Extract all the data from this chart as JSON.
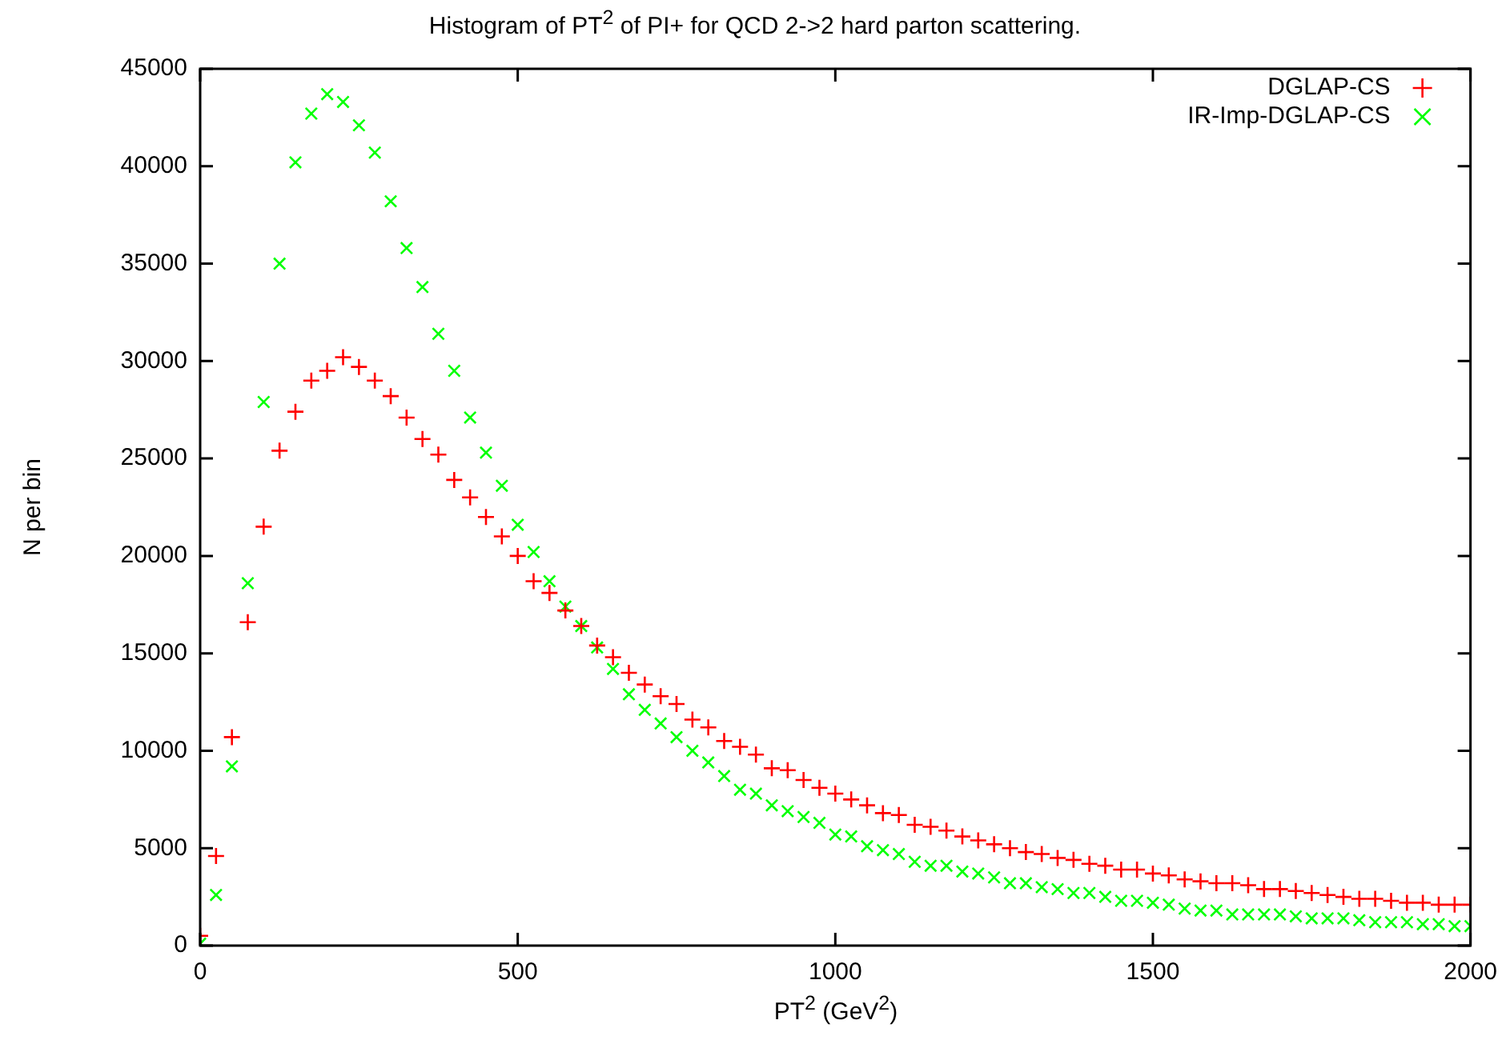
{
  "chart_data": {
    "type": "scatter",
    "title": "Histogram of PT$^{2}$ of PI+ for QCD 2->2 hard parton scattering.",
    "xlabel": "PT$^{2}$ (GeV$^{2}$)",
    "ylabel": "N per bin",
    "x": [
      0,
      25,
      50,
      75,
      100,
      125,
      150,
      175,
      200,
      225,
      250,
      275,
      300,
      325,
      350,
      375,
      400,
      425,
      450,
      475,
      500,
      525,
      550,
      575,
      600,
      625,
      650,
      675,
      700,
      725,
      750,
      775,
      800,
      825,
      850,
      875,
      900,
      925,
      950,
      975,
      1000,
      1025,
      1050,
      1075,
      1100,
      1125,
      1150,
      1175,
      1200,
      1225,
      1250,
      1275,
      1300,
      1325,
      1350,
      1375,
      1400,
      1425,
      1450,
      1475,
      1500,
      1525,
      1550,
      1575,
      1600,
      1625,
      1650,
      1675,
      1700,
      1725,
      1750,
      1775,
      1800,
      1825,
      1850,
      1875,
      1900,
      1925,
      1950,
      1975,
      2000
    ],
    "series": [
      {
        "name": "DGLAP-CS",
        "color": "#ff0000",
        "marker": "plus",
        "values": [
          500,
          4600,
          10700,
          16600,
          21500,
          25400,
          27400,
          29000,
          29500,
          30200,
          29700,
          29000,
          28200,
          27100,
          26000,
          25200,
          23900,
          23000,
          22000,
          21000,
          20000,
          18700,
          18100,
          17200,
          16400,
          15400,
          14800,
          14000,
          13400,
          12800,
          12400,
          11600,
          11200,
          10500,
          10200,
          9800,
          9100,
          9000,
          8500,
          8100,
          7800,
          7500,
          7200,
          6800,
          6700,
          6200,
          6100,
          5900,
          5600,
          5400,
          5200,
          5000,
          4800,
          4700,
          4500,
          4400,
          4200,
          4100,
          3900,
          3900,
          3700,
          3600,
          3400,
          3300,
          3200,
          3200,
          3100,
          2900,
          2900,
          2800,
          2700,
          2600,
          2500,
          2400,
          2400,
          2300,
          2200,
          2200,
          2100,
          2100,
          2100
        ]
      },
      {
        "name": "IR-Imp-DGLAP-CS",
        "color": "#00ff00",
        "marker": "cross",
        "values": [
          100,
          2600,
          9200,
          18600,
          27900,
          35000,
          40200,
          42700,
          43700,
          43300,
          42100,
          40700,
          38200,
          35800,
          33800,
          31400,
          29500,
          27100,
          25300,
          23600,
          21600,
          20200,
          18700,
          17400,
          16400,
          15300,
          14200,
          12900,
          12100,
          11400,
          10700,
          10000,
          9400,
          8700,
          8000,
          7800,
          7200,
          6900,
          6600,
          6300,
          5700,
          5600,
          5100,
          4900,
          4700,
          4300,
          4100,
          4100,
          3800,
          3700,
          3500,
          3200,
          3200,
          3000,
          2900,
          2700,
          2700,
          2500,
          2300,
          2300,
          2200,
          2100,
          1900,
          1800,
          1800,
          1600,
          1600,
          1600,
          1600,
          1500,
          1400,
          1400,
          1400,
          1300,
          1200,
          1200,
          1200,
          1100,
          1100,
          1000,
          1000
        ]
      }
    ],
    "xlim": [
      0,
      2000
    ],
    "xticks": [
      0,
      500,
      1000,
      1500,
      2000
    ],
    "ylim": [
      0,
      45000
    ],
    "yticks": [
      0,
      5000,
      10000,
      15000,
      20000,
      25000,
      30000,
      35000,
      40000,
      45000
    ],
    "grid": false,
    "legend": "top right"
  }
}
